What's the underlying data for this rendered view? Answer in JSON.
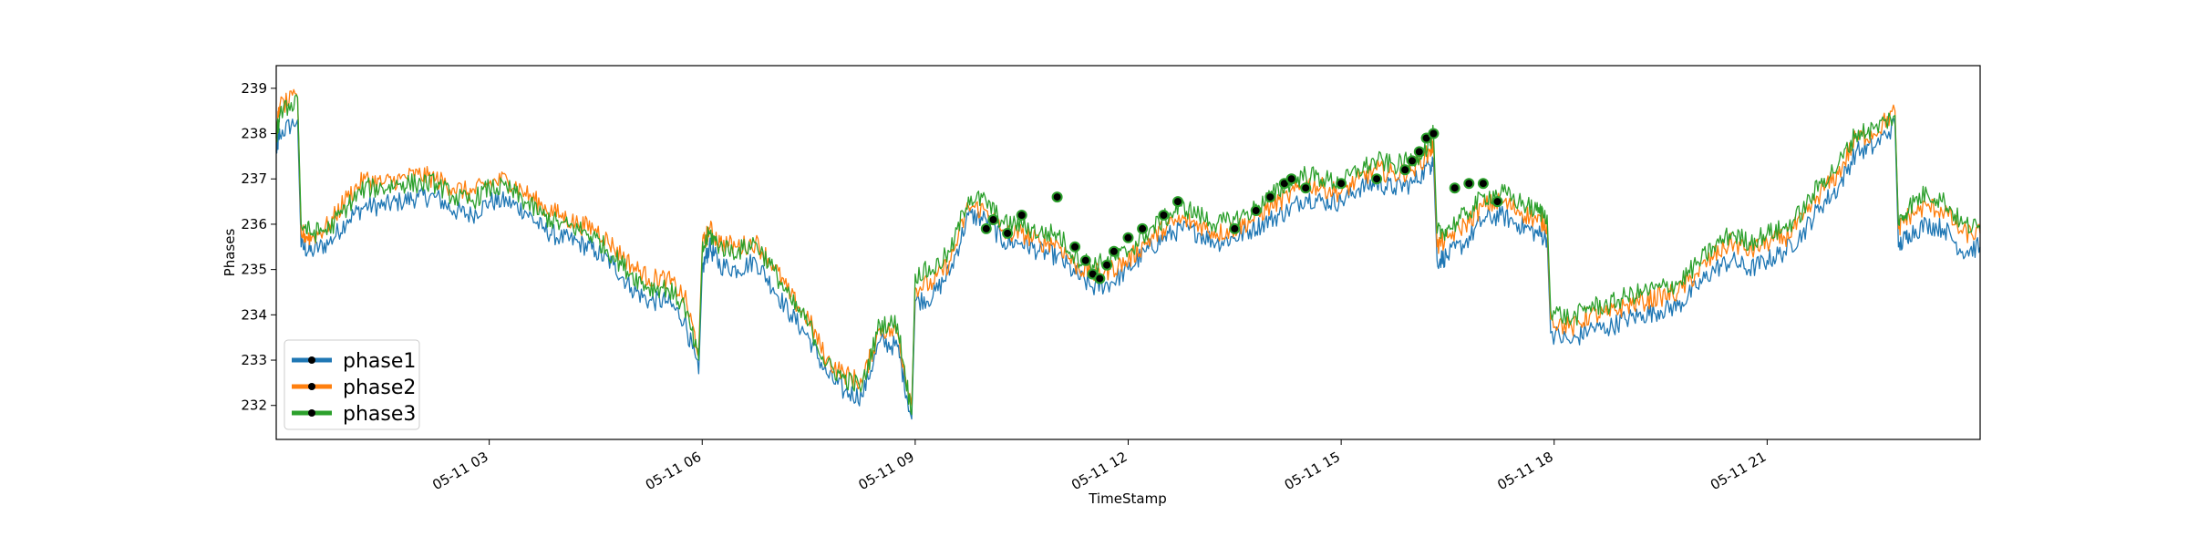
{
  "chart_data": {
    "type": "line",
    "title": "",
    "xlabel": "TimeStamp",
    "ylabel": "Phases",
    "ylim": [
      231.25,
      239.5
    ],
    "x_ticks": [
      "05-11 03",
      "05-11 06",
      "05-11 09",
      "05-11 12",
      "05-11 15",
      "05-11 18",
      "05-11 21"
    ],
    "y_ticks": [
      232,
      233,
      234,
      235,
      236,
      237,
      238,
      239
    ],
    "legend_position": "lower-left",
    "x_range_hours": [
      0,
      24
    ],
    "x_tick_hours": [
      3,
      6,
      9,
      12,
      15,
      18,
      21
    ],
    "hours": [
      0,
      0.05,
      0.3,
      0.35,
      0.5,
      0.75,
      1.0,
      1.25,
      1.5,
      1.75,
      2.0,
      2.25,
      2.5,
      2.75,
      3.0,
      3.25,
      3.5,
      3.75,
      4.0,
      4.25,
      4.5,
      4.75,
      5.0,
      5.25,
      5.5,
      5.75,
      5.95,
      6.0,
      6.1,
      6.25,
      6.5,
      6.75,
      7.0,
      7.25,
      7.5,
      7.75,
      8.0,
      8.25,
      8.5,
      8.75,
      8.95,
      9.0,
      9.25,
      9.5,
      9.75,
      10.0,
      10.25,
      10.5,
      10.75,
      11.0,
      11.25,
      11.5,
      11.75,
      12.0,
      12.25,
      12.5,
      12.75,
      13.0,
      13.25,
      13.5,
      13.75,
      14.0,
      14.25,
      14.5,
      14.75,
      15.0,
      15.25,
      15.5,
      15.75,
      16.0,
      16.25,
      16.3,
      16.35,
      16.5,
      16.75,
      17.0,
      17.25,
      17.5,
      17.75,
      17.9,
      17.95,
      18.25,
      18.5,
      18.75,
      19.0,
      19.25,
      19.5,
      19.75,
      20.0,
      20.25,
      20.5,
      20.75,
      21.0,
      21.25,
      21.5,
      21.75,
      22.0,
      22.25,
      22.5,
      22.8,
      22.85,
      23.0,
      23.25,
      23.5,
      23.75,
      24.0
    ],
    "series": [
      {
        "name": "phase1",
        "color": "#1f77b4",
        "values": [
          237.6,
          238.0,
          238.3,
          235.5,
          235.4,
          235.6,
          236.1,
          236.4,
          236.4,
          236.5,
          236.6,
          236.6,
          236.3,
          236.2,
          236.5,
          236.5,
          236.3,
          235.9,
          235.7,
          235.6,
          235.4,
          235.1,
          234.6,
          234.3,
          234.3,
          233.9,
          232.7,
          235.0,
          235.5,
          235.1,
          235.0,
          235.2,
          234.6,
          234.0,
          233.5,
          232.7,
          232.3,
          232.2,
          233.4,
          233.3,
          231.7,
          234.3,
          234.4,
          235.0,
          236.2,
          236.1,
          235.6,
          235.6,
          235.4,
          235.3,
          234.9,
          234.6,
          234.7,
          235.0,
          235.4,
          235.7,
          235.9,
          235.8,
          235.6,
          235.7,
          235.9,
          236.1,
          236.3,
          236.6,
          236.5,
          236.5,
          236.8,
          236.9,
          236.8,
          236.9,
          237.3,
          237.4,
          235.2,
          235.3,
          235.6,
          236.1,
          236.2,
          236.0,
          235.8,
          235.7,
          233.6,
          233.4,
          233.7,
          233.7,
          233.9,
          234.0,
          234.1,
          234.2,
          234.6,
          235.0,
          235.2,
          235.0,
          235.2,
          235.4,
          235.8,
          236.4,
          236.8,
          237.6,
          237.7,
          238.2,
          235.5,
          235.8,
          236.0,
          235.9,
          235.4,
          235.5
        ]
      },
      {
        "name": "phase2",
        "color": "#ff7f0e",
        "values": [
          238.0,
          238.6,
          238.8,
          235.8,
          235.7,
          236.0,
          236.6,
          237.0,
          236.9,
          237.0,
          237.1,
          237.0,
          236.8,
          236.7,
          236.9,
          237.0,
          236.7,
          236.4,
          236.2,
          236.0,
          235.9,
          235.5,
          235.1,
          234.8,
          234.8,
          234.4,
          233.2,
          235.5,
          235.9,
          235.6,
          235.5,
          235.6,
          235.1,
          234.4,
          233.9,
          233.0,
          232.7,
          232.5,
          233.7,
          233.6,
          232.0,
          234.6,
          234.7,
          235.2,
          236.4,
          236.3,
          235.8,
          235.8,
          235.6,
          235.6,
          235.1,
          234.9,
          235.0,
          235.2,
          235.6,
          235.9,
          236.1,
          236.0,
          235.8,
          235.9,
          236.1,
          236.4,
          236.6,
          236.9,
          236.8,
          236.7,
          237.0,
          237.2,
          237.1,
          237.2,
          237.6,
          237.8,
          235.5,
          235.7,
          236.0,
          236.4,
          236.5,
          236.3,
          236.1,
          236.0,
          233.9,
          233.7,
          234.0,
          234.0,
          234.2,
          234.3,
          234.4,
          234.5,
          234.9,
          235.3,
          235.6,
          235.4,
          235.6,
          235.7,
          236.1,
          236.7,
          237.1,
          237.9,
          238.0,
          238.5,
          235.9,
          236.2,
          236.4,
          236.3,
          235.8,
          235.8
        ]
      },
      {
        "name": "phase3",
        "color": "#2ca02c",
        "values": [
          237.9,
          238.4,
          238.8,
          236.0,
          235.8,
          235.9,
          236.4,
          236.8,
          236.8,
          236.9,
          236.9,
          236.9,
          236.6,
          236.5,
          236.8,
          236.8,
          236.5,
          236.2,
          236.0,
          235.9,
          235.7,
          235.3,
          234.9,
          234.6,
          234.6,
          234.2,
          233.0,
          235.4,
          235.8,
          235.5,
          235.4,
          235.6,
          235.0,
          234.3,
          233.8,
          232.9,
          232.6,
          232.4,
          233.8,
          233.8,
          231.8,
          234.9,
          235.0,
          235.4,
          236.6,
          236.5,
          236.0,
          236.0,
          235.8,
          235.8,
          235.3,
          235.1,
          235.2,
          235.4,
          235.8,
          236.1,
          236.4,
          236.2,
          236.0,
          236.1,
          236.3,
          236.6,
          236.9,
          237.1,
          237.0,
          236.9,
          237.2,
          237.4,
          237.3,
          237.4,
          237.8,
          238.0,
          235.8,
          235.9,
          236.2,
          236.6,
          236.7,
          236.5,
          236.3,
          236.2,
          234.1,
          233.9,
          234.2,
          234.2,
          234.4,
          234.5,
          234.6,
          234.7,
          235.1,
          235.5,
          235.8,
          235.6,
          235.8,
          235.9,
          236.3,
          236.9,
          237.3,
          238.0,
          238.1,
          238.4,
          236.0,
          236.4,
          236.7,
          236.5,
          236.0,
          235.9
        ]
      }
    ],
    "markers": {
      "hours": [
        10.0,
        10.1,
        10.3,
        10.5,
        11.0,
        11.25,
        11.4,
        11.5,
        11.6,
        11.7,
        11.8,
        12.0,
        12.2,
        12.5,
        12.7,
        13.5,
        13.8,
        14.0,
        14.2,
        14.3,
        14.5,
        15.0,
        15.5,
        15.9,
        16.0,
        16.1,
        16.2,
        16.3,
        16.6,
        16.8,
        17.0,
        17.2
      ],
      "values": [
        235.9,
        236.1,
        235.8,
        236.2,
        236.6,
        235.5,
        235.2,
        234.9,
        234.8,
        235.1,
        235.4,
        235.7,
        235.9,
        236.2,
        236.5,
        235.9,
        236.3,
        236.6,
        236.9,
        237.0,
        236.8,
        236.9,
        237.0,
        237.2,
        237.4,
        237.6,
        237.9,
        238.0,
        236.8,
        236.9,
        236.9,
        236.5
      ],
      "color": "#000000"
    }
  }
}
